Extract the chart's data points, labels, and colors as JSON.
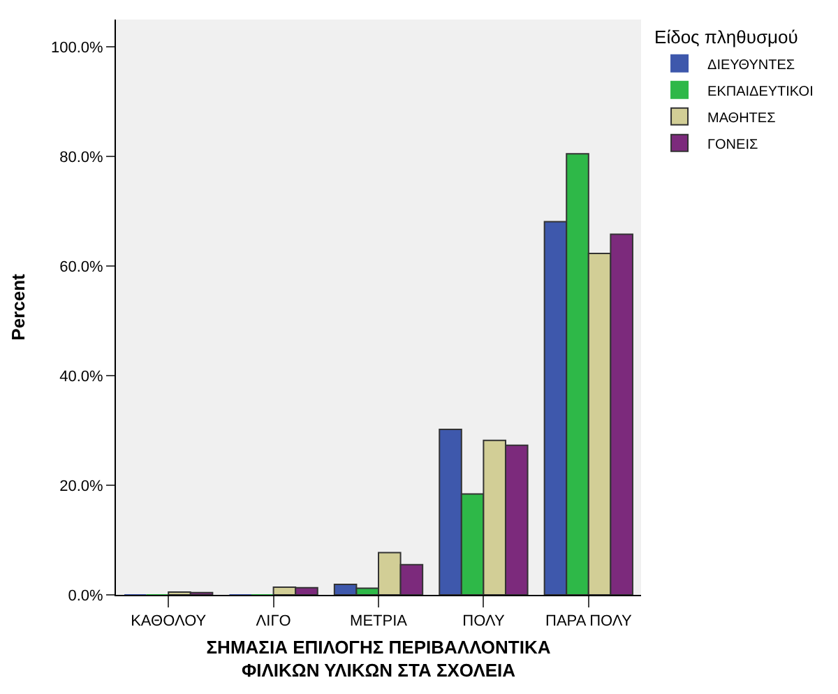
{
  "chart_data": {
    "type": "bar",
    "xlabel": "ΣΗΜΑΣΙΑ ΕΠΙΛΟΓΗΣ ΠΕΡΙΒΑΛΛΟΝΤΙΚΑ\nΦΙΛΙΚΩΝ ΥΛΙΚΩΝ ΣΤΑ ΣΧΟΛΕΙΑ",
    "ylabel": "Percent",
    "legend_title": "Είδος πληθυσμού",
    "categories": [
      "ΚΑΘΟΛΟΥ",
      "ΛΙΓΟ",
      "ΜΕΤΡΙΑ",
      "ΠΟΛΥ",
      "ΠΑΡΑ ΠΟΛΥ"
    ],
    "series": [
      {
        "name": "ΔΙΕΥΘΥΝΤΕΣ",
        "color": "#3e58ac",
        "values": [
          0,
          0,
          1.9,
          30.2,
          68.1
        ]
      },
      {
        "name": "ΕΚΠΑΙΔΕΥΤΙΚΟΙ",
        "color": "#2eb848",
        "values": [
          0,
          0,
          1.2,
          18.4,
          80.5
        ]
      },
      {
        "name": "ΜΑΘΗΤΕΣ",
        "color": "#d2ce96",
        "values": [
          0.5,
          1.4,
          7.7,
          28.2,
          62.3
        ]
      },
      {
        "name": "ΓΟΝΕΙΣ",
        "color": "#7c2a7c",
        "values": [
          0.4,
          1.3,
          5.5,
          27.3,
          65.8
        ]
      }
    ],
    "ylim": [
      0,
      105
    ],
    "yticks": [
      {
        "value": 0,
        "label": "0.0%"
      },
      {
        "value": 20,
        "label": "20.0%"
      },
      {
        "value": 40,
        "label": "40.0%"
      },
      {
        "value": 60,
        "label": "60.0%"
      },
      {
        "value": 80,
        "label": "80.0%"
      },
      {
        "value": 100,
        "label": "100.0%"
      }
    ],
    "grid": false,
    "legend": "top right"
  }
}
